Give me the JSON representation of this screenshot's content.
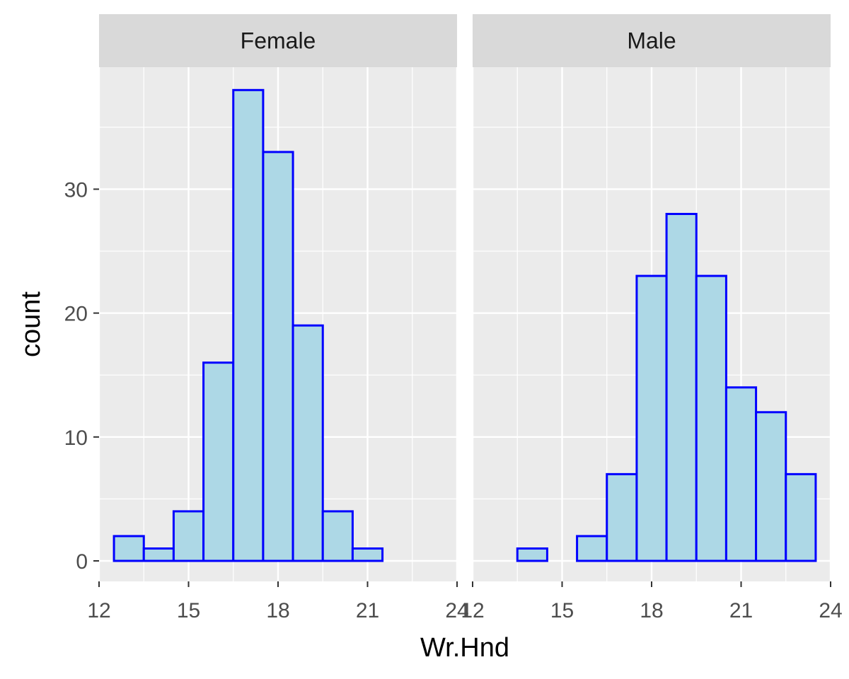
{
  "chart_data": {
    "type": "bar",
    "subtype": "histogram",
    "xlabel": "Wr.Hnd",
    "ylabel": "count",
    "xlim": [
      12,
      24
    ],
    "ylim": [
      0,
      40
    ],
    "x_ticks": [
      12,
      15,
      18,
      21,
      24
    ],
    "y_ticks": [
      0,
      10,
      20,
      30
    ],
    "bin_width": 1,
    "bin_centers": [
      13,
      14,
      15,
      16,
      17,
      18,
      19,
      20,
      21,
      22,
      23
    ],
    "panels": [
      {
        "name": "Female",
        "values": [
          2,
          1,
          4,
          16,
          38,
          33,
          19,
          4,
          1,
          0,
          0
        ]
      },
      {
        "name": "Male",
        "values": [
          0,
          1,
          0,
          2,
          7,
          23,
          28,
          23,
          14,
          12,
          7
        ]
      }
    ],
    "colors": {
      "fill": "#ADD8E6",
      "outline": "#0000FF",
      "panel_bg": "#EBEBEB",
      "grid": "#FFFFFF",
      "strip_bg": "#D9D9D9",
      "tick_text": "#4D4D4D"
    }
  }
}
